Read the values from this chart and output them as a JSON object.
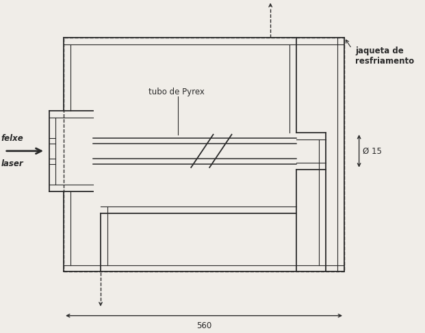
{
  "bg_color": "#f0ede8",
  "line_color": "#2a2a2a",
  "lw": 1.3,
  "lwt": 0.8,
  "label_feixe": "felxe",
  "label_laser": "laser",
  "label_tubo": "tubo de Pyrex",
  "label_jaqueta": "jaqueta de\nresfriamento",
  "label_diam": "Ø 15",
  "label_560": "560"
}
